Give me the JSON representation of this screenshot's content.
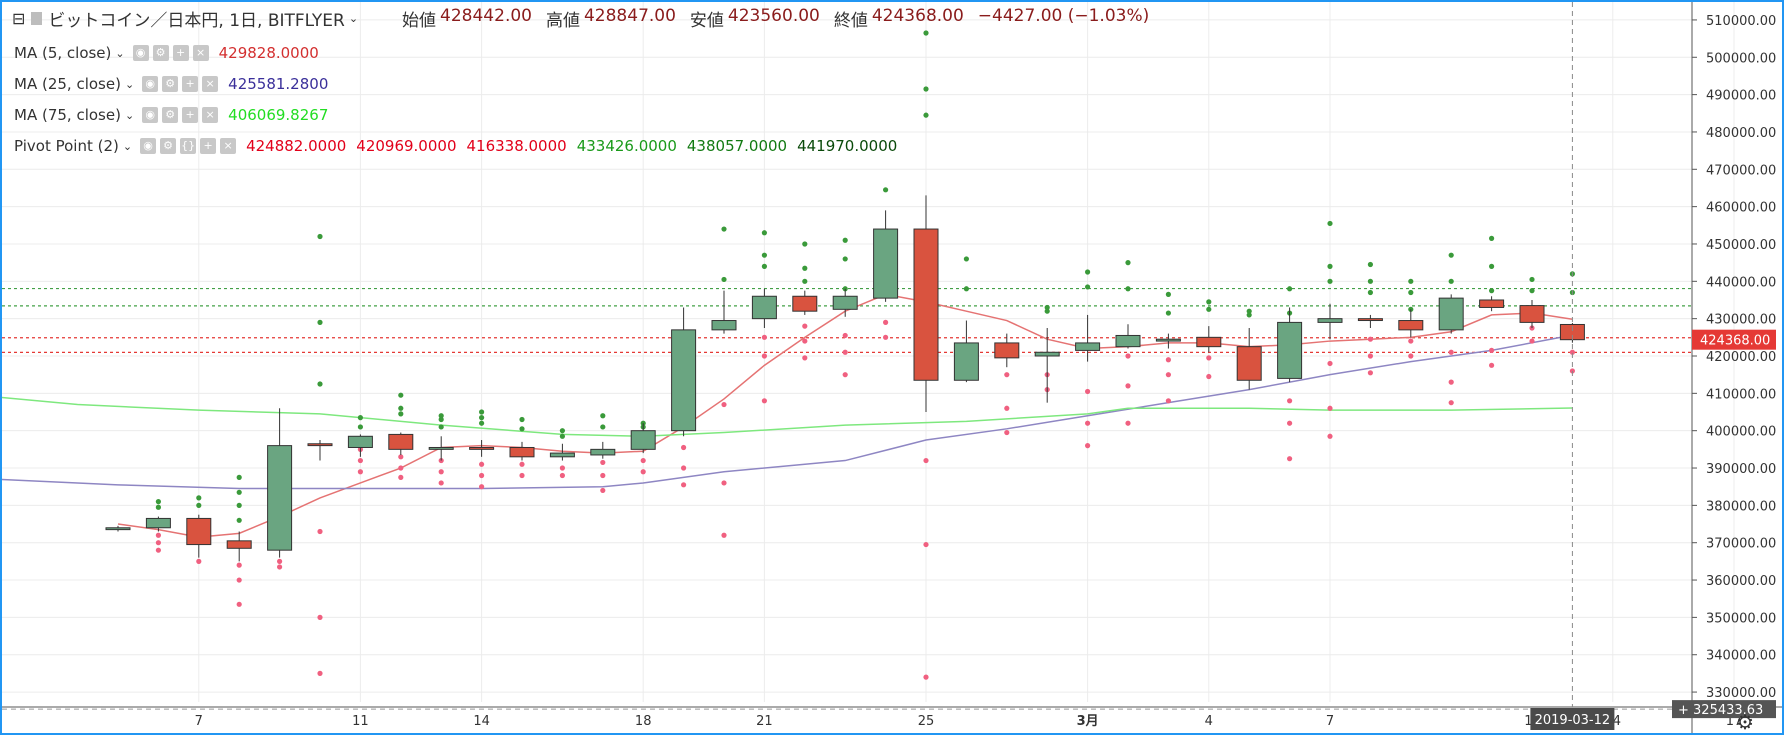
{
  "header": {
    "symbol": "ビットコイン／日本円, 1日, BITFLYER",
    "open_label": "始値",
    "open": "428442.00",
    "high_label": "高値",
    "high": "428847.00",
    "low_label": "安値",
    "low": "423560.00",
    "close_label": "終値",
    "close": "424368.00",
    "change": "−4427.00 (−1.03%)"
  },
  "indicators": [
    {
      "name": "MA (5, close)",
      "values": [
        "429828.0000"
      ],
      "colors": [
        "#d32f2f"
      ]
    },
    {
      "name": "MA (25, close)",
      "values": [
        "425581.2800"
      ],
      "colors": [
        "#3a2f9a"
      ]
    },
    {
      "name": "MA (75, close)",
      "values": [
        "406069.8267"
      ],
      "colors": [
        "#22dd22"
      ]
    },
    {
      "name": "Pivot Point (2)",
      "values": [
        "424882.0000",
        "420969.0000",
        "416338.0000",
        "433426.0000",
        "438057.0000",
        "441970.0000"
      ],
      "colors": [
        "#e2001a",
        "#e2001a",
        "#e2001a",
        "#1a9a1a",
        "#127a12",
        "#0a4a0a"
      ]
    }
  ],
  "chart_data": {
    "type": "candlestick",
    "ylim": [
      326000,
      514000
    ],
    "y_ticks": [
      "510000.00",
      "500000.00",
      "490000.00",
      "480000.00",
      "470000.00",
      "460000.00",
      "450000.00",
      "440000.00",
      "430000.00",
      "420000.00",
      "410000.00",
      "400000.00",
      "390000.00",
      "380000.00",
      "370000.00",
      "360000.00",
      "350000.00",
      "340000.00",
      "330000.00"
    ],
    "x_ticks": [
      {
        "label": "7",
        "day": 2
      },
      {
        "label": "11",
        "day": 6
      },
      {
        "label": "14",
        "day": 9
      },
      {
        "label": "18",
        "day": 13
      },
      {
        "label": "21",
        "day": 16
      },
      {
        "label": "25",
        "day": 20
      },
      {
        "label": "3月",
        "day": 24
      },
      {
        "label": "4",
        "day": 27
      },
      {
        "label": "7",
        "day": 30
      },
      {
        "label": "14",
        "day": 37
      },
      {
        "label": "17",
        "day": 40
      }
    ],
    "candles": [
      {
        "day": 0,
        "o": 373500,
        "h": 374500,
        "l": 373000,
        "c": 374000
      },
      {
        "day": 1,
        "o": 374000,
        "h": 377000,
        "l": 373000,
        "c": 376500
      },
      {
        "day": 2,
        "o": 376500,
        "h": 377500,
        "l": 366000,
        "c": 369500
      },
      {
        "day": 3,
        "o": 370500,
        "h": 373000,
        "l": 365000,
        "c": 368500
      },
      {
        "day": 4,
        "o": 368000,
        "h": 406000,
        "l": 366000,
        "c": 396000
      },
      {
        "day": 5,
        "o": 396500,
        "h": 397500,
        "l": 392000,
        "c": 396000
      },
      {
        "day": 6,
        "o": 395500,
        "h": 399000,
        "l": 393000,
        "c": 398500
      },
      {
        "day": 7,
        "o": 399000,
        "h": 399500,
        "l": 393500,
        "c": 395000
      },
      {
        "day": 8,
        "o": 395000,
        "h": 398500,
        "l": 392000,
        "c": 395500
      },
      {
        "day": 9,
        "o": 395500,
        "h": 397500,
        "l": 393000,
        "c": 395000
      },
      {
        "day": 10,
        "o": 395500,
        "h": 397000,
        "l": 392000,
        "c": 393000
      },
      {
        "day": 11,
        "o": 393000,
        "h": 396500,
        "l": 392000,
        "c": 394000
      },
      {
        "day": 12,
        "o": 393500,
        "h": 397000,
        "l": 392500,
        "c": 395000
      },
      {
        "day": 13,
        "o": 395000,
        "h": 402000,
        "l": 394000,
        "c": 400000
      },
      {
        "day": 14,
        "o": 400000,
        "h": 433000,
        "l": 398500,
        "c": 427000
      },
      {
        "day": 15,
        "o": 427000,
        "h": 437500,
        "l": 426000,
        "c": 429500
      },
      {
        "day": 16,
        "o": 430000,
        "h": 438000,
        "l": 427500,
        "c": 436000
      },
      {
        "day": 17,
        "o": 436000,
        "h": 437500,
        "l": 431000,
        "c": 432000
      },
      {
        "day": 18,
        "o": 432500,
        "h": 438000,
        "l": 430500,
        "c": 436000
      },
      {
        "day": 19,
        "o": 435500,
        "h": 459000,
        "l": 434500,
        "c": 454000
      },
      {
        "day": 20,
        "o": 454000,
        "h": 463000,
        "l": 405000,
        "c": 413500
      },
      {
        "day": 21,
        "o": 413500,
        "h": 429500,
        "l": 413000,
        "c": 423500
      },
      {
        "day": 22,
        "o": 423500,
        "h": 426000,
        "l": 417000,
        "c": 419500
      },
      {
        "day": 23,
        "o": 420000,
        "h": 427500,
        "l": 407500,
        "c": 421000
      },
      {
        "day": 24,
        "o": 421500,
        "h": 431000,
        "l": 418500,
        "c": 423500
      },
      {
        "day": 25,
        "o": 422500,
        "h": 428500,
        "l": 422000,
        "c": 425500
      },
      {
        "day": 26,
        "o": 424000,
        "h": 426000,
        "l": 422000,
        "c": 424500
      },
      {
        "day": 27,
        "o": 425000,
        "h": 428000,
        "l": 421000,
        "c": 422500
      },
      {
        "day": 28,
        "o": 422500,
        "h": 427500,
        "l": 411000,
        "c": 413500
      },
      {
        "day": 29,
        "o": 414000,
        "h": 433000,
        "l": 413000,
        "c": 429000
      },
      {
        "day": 30,
        "o": 429000,
        "h": 434000,
        "l": 424500,
        "c": 430000
      },
      {
        "day": 31,
        "o": 430000,
        "h": 431000,
        "l": 427500,
        "c": 429500
      },
      {
        "day": 32,
        "o": 429500,
        "h": 432500,
        "l": 425000,
        "c": 427000
      },
      {
        "day": 33,
        "o": 427000,
        "h": 436500,
        "l": 426000,
        "c": 435500
      },
      {
        "day": 34,
        "o": 435000,
        "h": 436000,
        "l": 432000,
        "c": 433000
      },
      {
        "day": 35,
        "o": 433500,
        "h": 435000,
        "l": 427500,
        "c": 429000
      },
      {
        "day": 36,
        "o": 428442,
        "h": 428847,
        "l": 423560,
        "c": 424368
      }
    ],
    "series": [
      {
        "name": "MA (5, close)",
        "color": "#e57373",
        "points": [
          [
            0,
            375000
          ],
          [
            1,
            373500
          ],
          [
            2,
            371500
          ],
          [
            3,
            372500
          ],
          [
            4,
            377000
          ],
          [
            5,
            382000
          ],
          [
            6,
            386000
          ],
          [
            7,
            390000
          ],
          [
            8,
            395500
          ],
          [
            9,
            396000
          ],
          [
            10,
            395500
          ],
          [
            11,
            394500
          ],
          [
            12,
            394000
          ],
          [
            13,
            394500
          ],
          [
            14,
            401000
          ],
          [
            15,
            408500
          ],
          [
            16,
            417500
          ],
          [
            17,
            425000
          ],
          [
            18,
            432000
          ],
          [
            19,
            436500
          ],
          [
            20,
            434500
          ],
          [
            21,
            432000
          ],
          [
            22,
            429500
          ],
          [
            23,
            424500
          ],
          [
            24,
            422000
          ],
          [
            25,
            422500
          ],
          [
            26,
            423500
          ],
          [
            27,
            423500
          ],
          [
            28,
            422500
          ],
          [
            29,
            423000
          ],
          [
            30,
            424000
          ],
          [
            31,
            424500
          ],
          [
            32,
            425000
          ],
          [
            33,
            426500
          ],
          [
            34,
            431000
          ],
          [
            35,
            431500
          ],
          [
            36,
            429828
          ]
        ]
      },
      {
        "name": "MA (25, close)",
        "color": "#8e86c3",
        "points": [
          [
            -3,
            387000
          ],
          [
            0,
            385500
          ],
          [
            3,
            384500
          ],
          [
            6,
            384500
          ],
          [
            9,
            384500
          ],
          [
            12,
            385000
          ],
          [
            13,
            386000
          ],
          [
            15,
            389000
          ],
          [
            18,
            392000
          ],
          [
            20,
            397500
          ],
          [
            22,
            400500
          ],
          [
            24,
            404000
          ],
          [
            26,
            407500
          ],
          [
            28,
            411000
          ],
          [
            30,
            415000
          ],
          [
            32,
            418500
          ],
          [
            34,
            421500
          ],
          [
            36,
            425581
          ]
        ]
      },
      {
        "name": "MA (75, close)",
        "color": "#7ee87e",
        "points": [
          [
            -3,
            409000
          ],
          [
            -1,
            407000
          ],
          [
            2,
            405500
          ],
          [
            5,
            404500
          ],
          [
            8,
            401500
          ],
          [
            11,
            399000
          ],
          [
            13,
            398500
          ],
          [
            15,
            399500
          ],
          [
            18,
            401500
          ],
          [
            21,
            402500
          ],
          [
            24,
            404500
          ],
          [
            25,
            406000
          ],
          [
            28,
            406000
          ],
          [
            30,
            405500
          ],
          [
            33,
            405500
          ],
          [
            36,
            406070
          ]
        ]
      }
    ],
    "pivot_levels": [
      {
        "value": 424882,
        "kind": "red"
      },
      {
        "value": 420969,
        "kind": "red"
      },
      {
        "value": 433426,
        "kind": "green"
      },
      {
        "value": 438057,
        "kind": "green"
      }
    ],
    "pivot_dots_green": [
      [
        1,
        379500
      ],
      [
        1,
        381000
      ],
      [
        2,
        380000
      ],
      [
        2,
        382000
      ],
      [
        3,
        376000
      ],
      [
        3,
        380000
      ],
      [
        3,
        383500
      ],
      [
        3,
        387500
      ],
      [
        5,
        429000
      ],
      [
        5,
        452000
      ],
      [
        5,
        412500
      ],
      [
        6,
        401000
      ],
      [
        6,
        403500
      ],
      [
        7,
        404500
      ],
      [
        7,
        406000
      ],
      [
        7,
        409500
      ],
      [
        8,
        401000
      ],
      [
        8,
        403000
      ],
      [
        8,
        404000
      ],
      [
        9,
        402000
      ],
      [
        9,
        403500
      ],
      [
        9,
        405000
      ],
      [
        10,
        400500
      ],
      [
        10,
        403000
      ],
      [
        11,
        398500
      ],
      [
        11,
        400000
      ],
      [
        12,
        401000
      ],
      [
        12,
        404000
      ],
      [
        13,
        401000
      ],
      [
        13,
        402000
      ],
      [
        15,
        440500
      ],
      [
        15,
        454000
      ],
      [
        16,
        444000
      ],
      [
        16,
        447000
      ],
      [
        16,
        453000
      ],
      [
        17,
        440000
      ],
      [
        17,
        443500
      ],
      [
        17,
        450000
      ],
      [
        18,
        438000
      ],
      [
        18,
        446000
      ],
      [
        18,
        451000
      ],
      [
        19,
        464500
      ],
      [
        19,
        452000
      ],
      [
        20,
        449000
      ],
      [
        20,
        484500
      ],
      [
        20,
        491500
      ],
      [
        20,
        506500
      ],
      [
        21,
        438000
      ],
      [
        21,
        446000
      ],
      [
        23,
        432000
      ],
      [
        23,
        433000
      ],
      [
        24,
        438500
      ],
      [
        24,
        442500
      ],
      [
        25,
        438000
      ],
      [
        25,
        445000
      ],
      [
        26,
        431500
      ],
      [
        26,
        436500
      ],
      [
        27,
        432500
      ],
      [
        27,
        434500
      ],
      [
        28,
        431000
      ],
      [
        28,
        432000
      ],
      [
        29,
        431500
      ],
      [
        29,
        438000
      ],
      [
        30,
        440000
      ],
      [
        30,
        444000
      ],
      [
        30,
        455500
      ],
      [
        31,
        437000
      ],
      [
        31,
        440000
      ],
      [
        31,
        444500
      ],
      [
        32,
        432500
      ],
      [
        32,
        437000
      ],
      [
        32,
        440000
      ],
      [
        33,
        440000
      ],
      [
        33,
        447000
      ],
      [
        34,
        437500
      ],
      [
        34,
        444000
      ],
      [
        34,
        451500
      ],
      [
        35,
        437500
      ],
      [
        35,
        440500
      ],
      [
        36,
        437000
      ],
      [
        36,
        442000
      ]
    ],
    "pivot_dots_red": [
      [
        1,
        368000
      ],
      [
        1,
        370000
      ],
      [
        1,
        372000
      ],
      [
        2,
        365000
      ],
      [
        3,
        353500
      ],
      [
        3,
        360000
      ],
      [
        3,
        364000
      ],
      [
        4,
        363500
      ],
      [
        4,
        365000
      ],
      [
        5,
        335000
      ],
      [
        5,
        350000
      ],
      [
        5,
        373000
      ],
      [
        6,
        395000
      ],
      [
        6,
        392000
      ],
      [
        6,
        389000
      ],
      [
        7,
        393000
      ],
      [
        7,
        390000
      ],
      [
        7,
        387500
      ],
      [
        8,
        392000
      ],
      [
        8,
        389000
      ],
      [
        8,
        386000
      ],
      [
        9,
        391000
      ],
      [
        9,
        388000
      ],
      [
        9,
        385000
      ],
      [
        10,
        391000
      ],
      [
        10,
        388000
      ],
      [
        11,
        390000
      ],
      [
        11,
        388000
      ],
      [
        12,
        391500
      ],
      [
        12,
        388000
      ],
      [
        12,
        384000
      ],
      [
        13,
        392000
      ],
      [
        13,
        389000
      ],
      [
        14,
        395500
      ],
      [
        14,
        390000
      ],
      [
        14,
        385500
      ],
      [
        15,
        407000
      ],
      [
        15,
        386000
      ],
      [
        15,
        372000
      ],
      [
        16,
        425000
      ],
      [
        16,
        420000
      ],
      [
        16,
        408000
      ],
      [
        17,
        428000
      ],
      [
        17,
        424000
      ],
      [
        17,
        419500
      ],
      [
        18,
        425500
      ],
      [
        18,
        421000
      ],
      [
        18,
        415000
      ],
      [
        19,
        425000
      ],
      [
        19,
        429000
      ],
      [
        20,
        424500
      ],
      [
        20,
        392000
      ],
      [
        20,
        369500
      ],
      [
        20,
        334000
      ],
      [
        21,
        420000
      ],
      [
        21,
        415000
      ],
      [
        22,
        415000
      ],
      [
        22,
        406000
      ],
      [
        22,
        399500
      ],
      [
        23,
        415000
      ],
      [
        23,
        411000
      ],
      [
        24,
        410500
      ],
      [
        24,
        402000
      ],
      [
        24,
        396000
      ],
      [
        25,
        420000
      ],
      [
        25,
        412000
      ],
      [
        25,
        402000
      ],
      [
        26,
        419000
      ],
      [
        26,
        415000
      ],
      [
        26,
        408000
      ],
      [
        27,
        419500
      ],
      [
        27,
        414500
      ],
      [
        28,
        421000
      ],
      [
        28,
        416000
      ],
      [
        29,
        408000
      ],
      [
        29,
        402000
      ],
      [
        29,
        392500
      ],
      [
        30,
        418000
      ],
      [
        30,
        406000
      ],
      [
        30,
        398500
      ],
      [
        31,
        424500
      ],
      [
        31,
        420000
      ],
      [
        31,
        415500
      ],
      [
        32,
        424000
      ],
      [
        32,
        420000
      ],
      [
        33,
        421000
      ],
      [
        33,
        413000
      ],
      [
        33,
        407500
      ],
      [
        34,
        421500
      ],
      [
        34,
        417500
      ],
      [
        35,
        427500
      ],
      [
        35,
        424000
      ],
      [
        36,
        421000
      ],
      [
        36,
        416000
      ]
    ],
    "current_price_label": "424368.00",
    "lowest_label": "325433.63",
    "lowest_value": 325434,
    "cursor_day": 36,
    "cursor_date_label": "2019-03-12",
    "cursor_partial_tick": "1"
  }
}
